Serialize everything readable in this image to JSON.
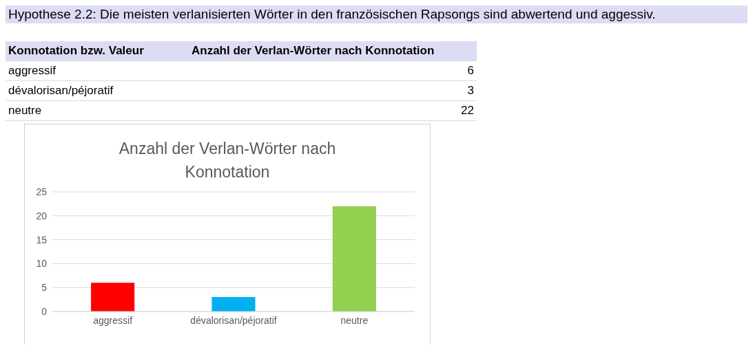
{
  "chart_data": [
    {
      "type": "other",
      "title": "Hypothese 2.2: Die meisten verlanisierten Wörter in den französischen Rapsongs sind abwertend und aggessiv.",
      "annotations": [
        "Konnotation bzw. Valeur",
        "Anzahl der Verlan-Wörter nach Konnotation",
        "aggressif",
        "6",
        "dévalorisan/péjoratif",
        "3",
        "neutre",
        "22"
      ]
    },
    {
      "type": "bar",
      "title": "Anzahl der Verlan-Wörter nach Konnotation",
      "categories": [
        "aggressif",
        "dévalorisan/péjoratif",
        "neutre"
      ],
      "values": [
        6,
        3,
        22
      ],
      "colors": [
        "#ff0000",
        "#00b0f0",
        "#92d050"
      ],
      "ylim": [
        0,
        25
      ],
      "yticks": [
        0,
        5,
        10,
        15,
        20,
        25
      ],
      "grid": "y"
    }
  ]
}
